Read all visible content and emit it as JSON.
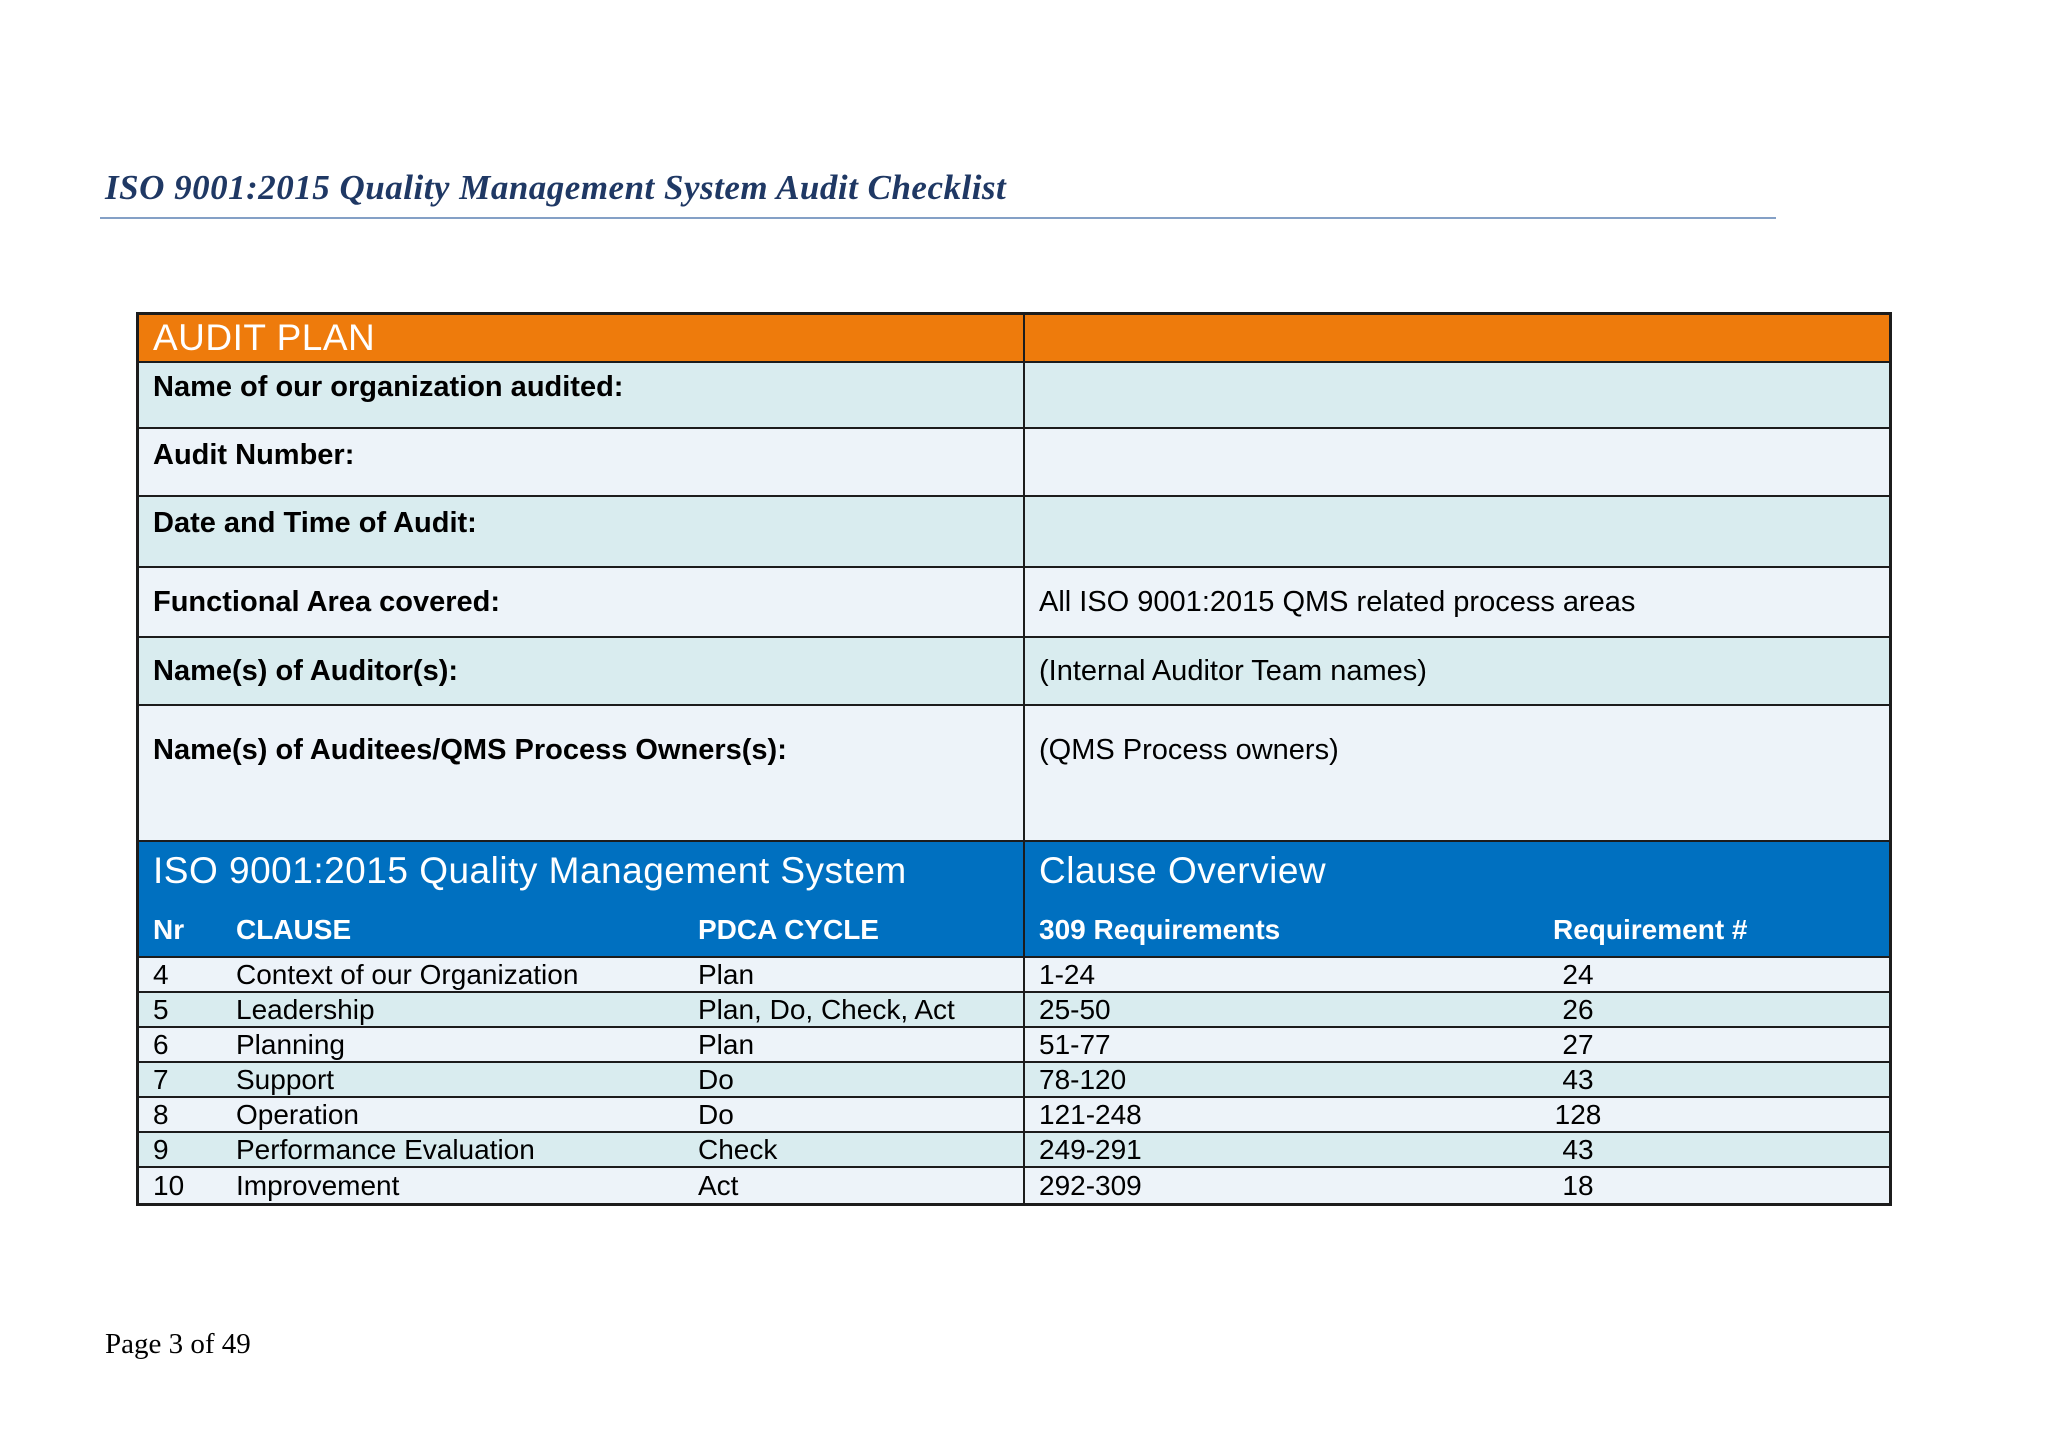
{
  "page": {
    "title": "ISO 9001:2015 Quality Management System Audit Checklist",
    "footer": "Page 3 of 49"
  },
  "colors": {
    "title_navy": "#1f3864",
    "rule_blue": "#84a0c6",
    "header_orange": "#ee7b0c",
    "header_blue": "#0070c0",
    "row_cyan": "#d9ecef",
    "row_light": "#edf3f9",
    "border_dark": "#1c1c1c"
  },
  "audit_plan": {
    "header": "AUDIT PLAN",
    "rows": [
      {
        "label": "Name of our organization audited:",
        "value": ""
      },
      {
        "label": "Audit Number:",
        "value": ""
      },
      {
        "label": "Date and Time of Audit:",
        "value": ""
      },
      {
        "label": "Functional Area covered:",
        "value": "All ISO 9001:2015 QMS related process areas"
      },
      {
        "label": "Name(s) of Auditor(s):",
        "value": "(Internal Auditor Team names)"
      },
      {
        "label": "Name(s) of Auditees/QMS Process Owners(s):",
        "value": "(QMS Process owners)"
      }
    ]
  },
  "clause_table": {
    "left_header": "ISO 9001:2015 Quality Management System",
    "right_header": "Clause Overview",
    "columns": [
      "Nr",
      "CLAUSE",
      "PDCA CYCLE",
      "309 Requirements",
      "Requirement #"
    ],
    "rows": [
      {
        "nr": "4",
        "clause": "Context of our Organization",
        "pdca": "Plan",
        "requirements": "1-24",
        "requirement_count": "24"
      },
      {
        "nr": "5",
        "clause": "Leadership",
        "pdca": "Plan, Do, Check, Act",
        "requirements": "25-50",
        "requirement_count": "26"
      },
      {
        "nr": "6",
        "clause": "Planning",
        "pdca": "Plan",
        "requirements": "51-77",
        "requirement_count": "27"
      },
      {
        "nr": "7",
        "clause": "Support",
        "pdca": "Do",
        "requirements": "78-120",
        "requirement_count": "43"
      },
      {
        "nr": "8",
        "clause": "Operation",
        "pdca": "Do",
        "requirements": "121-248",
        "requirement_count": "128"
      },
      {
        "nr": "9",
        "clause": "Performance Evaluation",
        "pdca": "Check",
        "requirements": "249-291",
        "requirement_count": "43"
      },
      {
        "nr": "10",
        "clause": "Improvement",
        "pdca": "Act",
        "requirements": "292-309",
        "requirement_count": "18"
      }
    ]
  }
}
